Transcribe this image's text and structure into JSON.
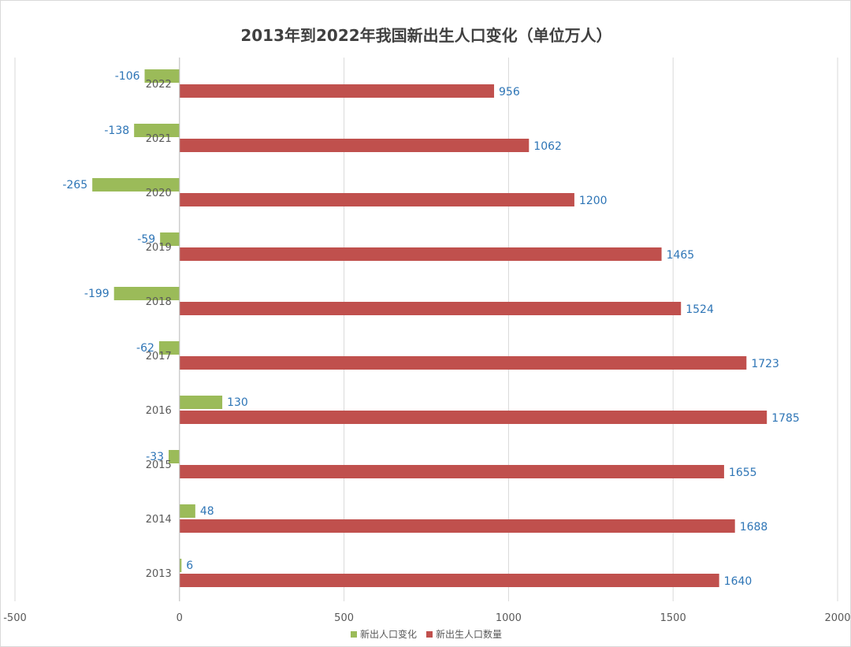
{
  "chart_data": {
    "type": "bar",
    "orientation": "horizontal",
    "title": "2013年到2022年我国新出生人口变化（单位万人）",
    "categories": [
      "2013",
      "2014",
      "2015",
      "2016",
      "2017",
      "2018",
      "2019",
      "2020",
      "2021",
      "2022"
    ],
    "series": [
      {
        "name": "新出人口变化",
        "color": "#9bbb59",
        "values": [
          6,
          48,
          -33,
          130,
          -62,
          -199,
          -59,
          -265,
          -138,
          -106
        ]
      },
      {
        "name": "新出生人口数量",
        "color": "#c0504d",
        "values": [
          1640,
          1688,
          1655,
          1785,
          1723,
          1524,
          1465,
          1200,
          1062,
          956
        ]
      }
    ],
    "xlim": [
      -500,
      2000
    ],
    "xticks": [
      "-500",
      "0",
      "500",
      "1000",
      "1500",
      "2000"
    ],
    "xtick_values": [
      -500,
      0,
      500,
      1000,
      1500,
      2000
    ],
    "grid": true,
    "legend_position": "bottom",
    "data_label_color": "#2e75b6",
    "xlabel": "",
    "ylabel": ""
  }
}
